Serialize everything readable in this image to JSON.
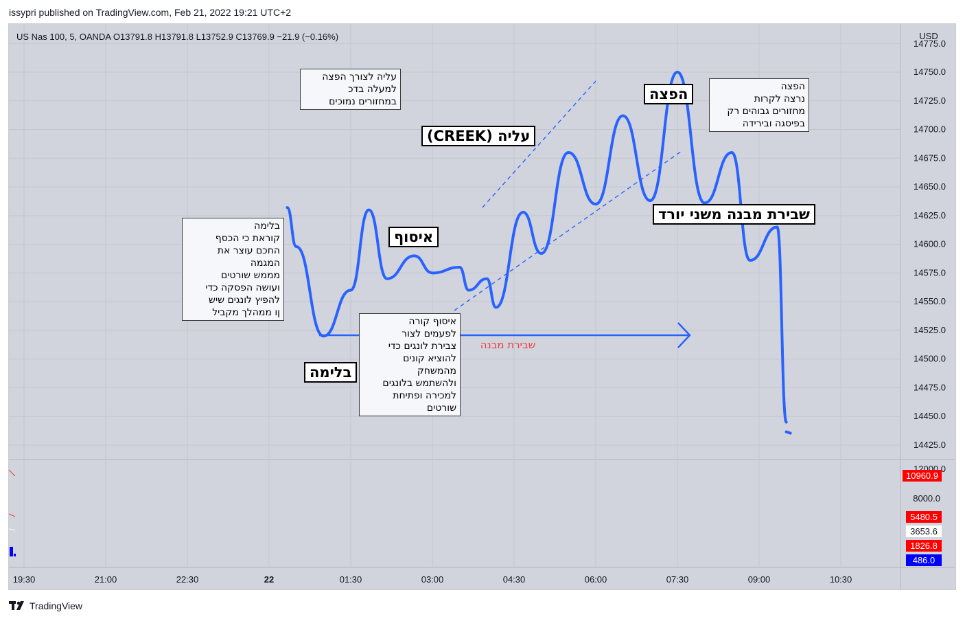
{
  "header": {
    "published": "issypri published on TradingView.com, Feb 21, 2022 19:21 UTC+2"
  },
  "legend": {
    "ohlc": "US Nas 100, 5, OANDA  O13791.8  H13791.8  L13752.9  C13769.9  −21.9 (−0.16%)"
  },
  "price_axis": {
    "currency": "USD",
    "ticks": [
      "14775.0",
      "14750.0",
      "14725.0",
      "14700.0",
      "14675.0",
      "14650.0",
      "14625.0",
      "14600.0",
      "14575.0",
      "14550.0",
      "14525.0",
      "14500.0",
      "14475.0",
      "14450.0",
      "14425.0"
    ]
  },
  "volume_axis": {
    "ticks": [
      "12000.0",
      "8000.0"
    ],
    "badges": [
      {
        "label": "10960.9",
        "bg": "#ff0000",
        "fg": "#ffffff"
      },
      {
        "label": "5480.5",
        "bg": "#ff0000",
        "fg": "#ffffff"
      },
      {
        "label": "3653.6",
        "bg": "#ffffff",
        "fg": "#131722"
      },
      {
        "label": "1826.8",
        "bg": "#ff0000",
        "fg": "#ffffff"
      },
      {
        "label": "486.0",
        "bg": "#0000ff",
        "fg": "#ffffff"
      }
    ]
  },
  "time_axis": {
    "ticks": [
      "19:30",
      "21:00",
      "22:30",
      "22",
      "01:30",
      "03:00",
      "04:30",
      "06:00",
      "07:30",
      "09:00",
      "10:30"
    ]
  },
  "annotations": {
    "note_wyckoff_intro": "בלימה\nקוראת כי הכסף\nהחכם עוצר את\nהמגמה\nמממש שורטים\nועושה הפסקה כדי\nלהפיץ לונגים שיש\nןו ממהלך מקביל",
    "note_markup": "עליה לצורך הפצה\nלמעלה בדכ\nבמחזורים נמוכים",
    "note_distribution": "הפצה\nנרצה לקרות\nמחזורים גבוהים רק\nבפיסגה ובירידה",
    "note_accumulation": "איסוף קורה\nלפעמים לצור\nצבירת לונגים כדי\nלהוציא קונים\nמהמשחק\nולהשתמש בלונגים\nלמכירה ופתיחת\nשורטים",
    "label_accumulation": "איסוף",
    "label_creek": "עליה (CREEK)",
    "label_distribution": "הפצה",
    "label_downtrend_break": "שבירת מבנה משני יורד",
    "label_stopping": "בלימה",
    "structure_break_text": "שבירת מבנה"
  },
  "colors": {
    "drawing": "#2962ff",
    "background": "#d1d4dc",
    "structure_break": "#ef3b3b"
  },
  "chart_data": {
    "type": "line",
    "title": "US Nas 100, 5, OANDA",
    "ylabel": "USD",
    "ylim": [
      14415,
      14780
    ],
    "x_ticks": [
      "19:30",
      "21:00",
      "22:30",
      "22",
      "01:30",
      "03:00",
      "04:30",
      "06:00",
      "07:30",
      "09:00",
      "10:30"
    ],
    "series": [
      {
        "points": [
          [
            "22 00:20",
            14632
          ],
          [
            "22 00:30",
            14598
          ],
          [
            "22 01:00",
            14520
          ],
          [
            "22 01:30",
            14560
          ],
          [
            "22 01:50",
            14630
          ],
          [
            "22 02:10",
            14570
          ],
          [
            "22 02:40",
            14590
          ],
          [
            "22 03:00",
            14575
          ],
          [
            "22 03:30",
            14580
          ],
          [
            "22 03:40",
            14560
          ],
          [
            "22 04:00",
            14570
          ],
          [
            "22 04:10",
            14545
          ],
          [
            "22 04:40",
            14628
          ],
          [
            "22 05:00",
            14592
          ],
          [
            "22 05:30",
            14680
          ],
          [
            "22 06:00",
            14635
          ],
          [
            "22 06:30",
            14712
          ],
          [
            "22 07:00",
            14638
          ],
          [
            "22 07:30",
            14750
          ],
          [
            "22 08:00",
            14636
          ],
          [
            "22 08:30",
            14680
          ],
          [
            "22 08:50",
            14586
          ],
          [
            "22 09:20",
            14615
          ],
          [
            "22 09:30",
            14445
          ]
        ]
      }
    ]
  }
}
